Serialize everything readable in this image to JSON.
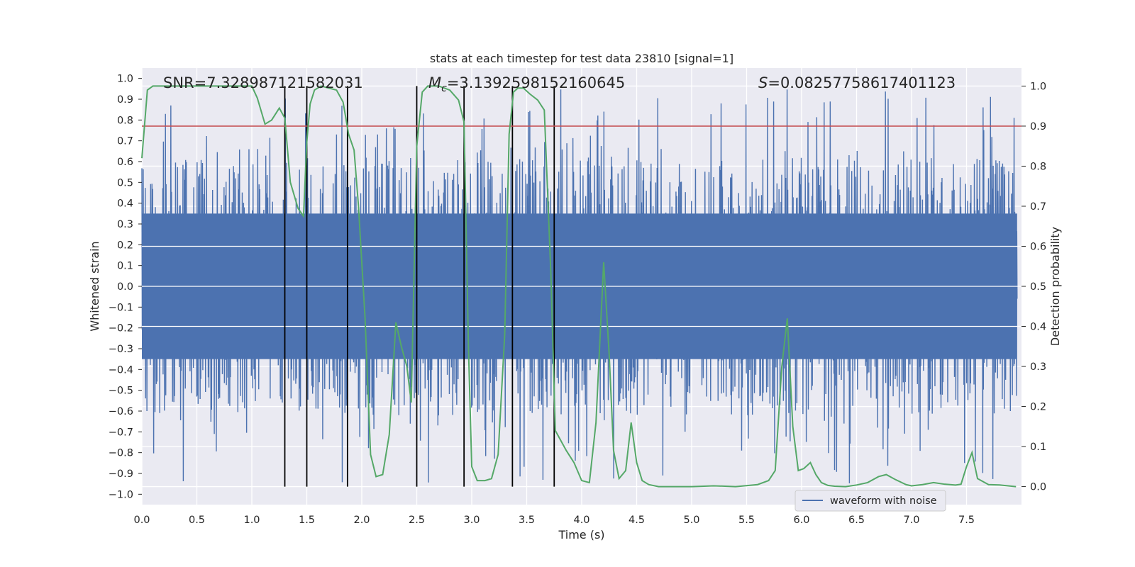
{
  "chart_data": {
    "type": "line",
    "title": "stats at each timestep for test data 23810 [signal=1]",
    "xlabel": "Time (s)",
    "ylabel": "Whitened strain",
    "y2label": "Detection probability",
    "xlim": [
      0.0,
      8.0
    ],
    "ylim": [
      -1.05,
      1.05
    ],
    "y2lim": [
      -0.045,
      1.045
    ],
    "xticks": [
      "0.0",
      "0.5",
      "1.0",
      "1.5",
      "2.0",
      "2.5",
      "3.0",
      "3.5",
      "4.0",
      "4.5",
      "5.0",
      "5.5",
      "6.0",
      "6.5",
      "7.0",
      "7.5"
    ],
    "yticks": [
      "1.0",
      "0.9",
      "0.8",
      "0.7",
      "0.6",
      "0.5",
      "0.4",
      "0.3",
      "0.2",
      "0.1",
      "0.0",
      "−0.1",
      "−0.2",
      "−0.3",
      "−0.4",
      "−0.5",
      "−0.6",
      "−0.7",
      "−0.8",
      "−0.9",
      "−1.0"
    ],
    "y2ticks": [
      "1.0",
      "0.9",
      "0.8",
      "0.7",
      "0.6",
      "0.5",
      "0.4",
      "0.3",
      "0.2",
      "0.1",
      "0.0"
    ],
    "grid": true,
    "annotations": [
      {
        "label": "SNR=7.328987121582031"
      },
      {
        "label_math": "M",
        "label_sub": "c",
        "label_rest": "=3.1392598152160645"
      },
      {
        "label_math": "S",
        "label_rest": "=0.08257758617401123"
      }
    ],
    "legend": {
      "position": "lower-right",
      "entries": [
        "waveform with noise"
      ]
    },
    "threshold": {
      "axis": "y2",
      "value": 0.9,
      "color": "#c44e52"
    },
    "vlines": [
      1.3,
      1.5,
      1.87,
      2.5,
      2.93,
      3.37,
      3.75
    ],
    "waveform": {
      "name": "waveform with noise",
      "color": "#4c72b0",
      "approx_amplitude_envelope": [
        -0.95,
        0.95
      ],
      "typical_core_range": [
        -0.35,
        0.35
      ]
    },
    "series": [
      {
        "name": "",
        "axis": "y2",
        "color": "#55a868",
        "x": [
          0.0,
          0.05,
          0.1,
          0.2,
          0.4,
          0.6,
          0.8,
          1.0,
          1.05,
          1.12,
          1.18,
          1.25,
          1.3,
          1.35,
          1.42,
          1.47,
          1.5,
          1.53,
          1.57,
          1.63,
          1.7,
          1.77,
          1.83,
          1.88,
          1.93,
          1.97,
          2.03,
          2.08,
          2.13,
          2.19,
          2.25,
          2.31,
          2.36,
          2.41,
          2.45,
          2.5,
          2.55,
          2.6,
          2.7,
          2.8,
          2.88,
          2.93,
          2.97,
          3.0,
          3.05,
          3.12,
          3.18,
          3.24,
          3.3,
          3.34,
          3.38,
          3.42,
          3.47,
          3.53,
          3.6,
          3.66,
          3.72,
          3.76,
          3.8,
          3.86,
          3.93,
          4.0,
          4.07,
          4.13,
          4.2,
          4.25,
          4.29,
          4.34,
          4.4,
          4.45,
          4.5,
          4.55,
          4.61,
          4.7,
          4.8,
          5.0,
          5.2,
          5.4,
          5.6,
          5.7,
          5.76,
          5.82,
          5.87,
          5.92,
          5.97,
          6.02,
          6.08,
          6.13,
          6.18,
          6.24,
          6.3,
          6.4,
          6.5,
          6.6,
          6.7,
          6.77,
          6.85,
          6.95,
          7.0,
          7.1,
          7.2,
          7.3,
          7.4,
          7.45,
          7.5,
          7.55,
          7.6,
          7.7,
          7.8,
          7.95
        ],
        "values": [
          0.82,
          0.99,
          1.0,
          1.0,
          1.0,
          1.0,
          1.0,
          1.0,
          0.97,
          0.905,
          0.915,
          0.945,
          0.92,
          0.76,
          0.695,
          0.675,
          0.86,
          0.955,
          0.99,
          1.0,
          0.995,
          0.99,
          0.96,
          0.88,
          0.84,
          0.7,
          0.42,
          0.08,
          0.025,
          0.03,
          0.13,
          0.41,
          0.35,
          0.3,
          0.21,
          0.85,
          0.985,
          1.0,
          1.0,
          0.99,
          0.965,
          0.91,
          0.35,
          0.05,
          0.015,
          0.015,
          0.02,
          0.08,
          0.38,
          0.88,
          0.985,
          0.995,
          0.995,
          0.98,
          0.965,
          0.94,
          0.53,
          0.14,
          0.12,
          0.09,
          0.06,
          0.015,
          0.01,
          0.16,
          0.56,
          0.33,
          0.09,
          0.02,
          0.04,
          0.16,
          0.06,
          0.015,
          0.005,
          0.0,
          0.0,
          0.0,
          0.002,
          0.0,
          0.005,
          0.015,
          0.04,
          0.3,
          0.42,
          0.15,
          0.04,
          0.045,
          0.06,
          0.03,
          0.01,
          0.003,
          0.001,
          0.0,
          0.004,
          0.01,
          0.025,
          0.03,
          0.018,
          0.005,
          0.002,
          0.005,
          0.01,
          0.006,
          0.004,
          0.006,
          0.05,
          0.085,
          0.02,
          0.005,
          0.004,
          0.0
        ]
      }
    ]
  }
}
